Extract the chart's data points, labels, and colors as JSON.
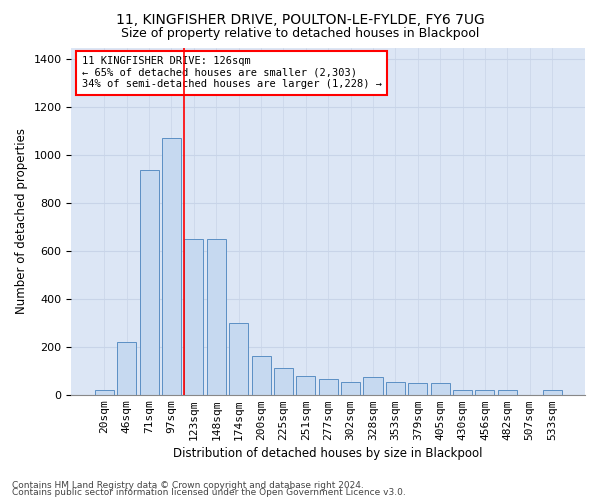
{
  "title1": "11, KINGFISHER DRIVE, POULTON-LE-FYLDE, FY6 7UG",
  "title2": "Size of property relative to detached houses in Blackpool",
  "xlabel": "Distribution of detached houses by size in Blackpool",
  "ylabel": "Number of detached properties",
  "categories": [
    "20sqm",
    "46sqm",
    "71sqm",
    "97sqm",
    "123sqm",
    "148sqm",
    "174sqm",
    "200sqm",
    "225sqm",
    "251sqm",
    "277sqm",
    "302sqm",
    "328sqm",
    "353sqm",
    "379sqm",
    "405sqm",
    "430sqm",
    "456sqm",
    "482sqm",
    "507sqm",
    "533sqm"
  ],
  "values": [
    20,
    220,
    940,
    1070,
    650,
    650,
    300,
    160,
    110,
    80,
    65,
    55,
    75,
    55,
    48,
    48,
    20,
    20,
    20,
    0,
    20
  ],
  "bar_color": "#c6d9f0",
  "bar_edge_color": "#5b8fc4",
  "grid_color": "#c8d4e8",
  "background_color": "#dce6f5",
  "red_line_index": 4,
  "annotation_text": "11 KINGFISHER DRIVE: 126sqm\n← 65% of detached houses are smaller (2,303)\n34% of semi-detached houses are larger (1,228) →",
  "annotation_box_facecolor": "white",
  "annotation_box_edgecolor": "red",
  "ylim": [
    0,
    1450
  ],
  "yticks": [
    0,
    200,
    400,
    600,
    800,
    1000,
    1200,
    1400
  ],
  "title1_fontsize": 10,
  "title2_fontsize": 9,
  "xlabel_fontsize": 8.5,
  "ylabel_fontsize": 8.5,
  "tick_fontsize": 8,
  "ann_fontsize": 7.5,
  "footer1": "Contains HM Land Registry data © Crown copyright and database right 2024.",
  "footer2": "Contains public sector information licensed under the Open Government Licence v3.0.",
  "footer_fontsize": 6.5
}
